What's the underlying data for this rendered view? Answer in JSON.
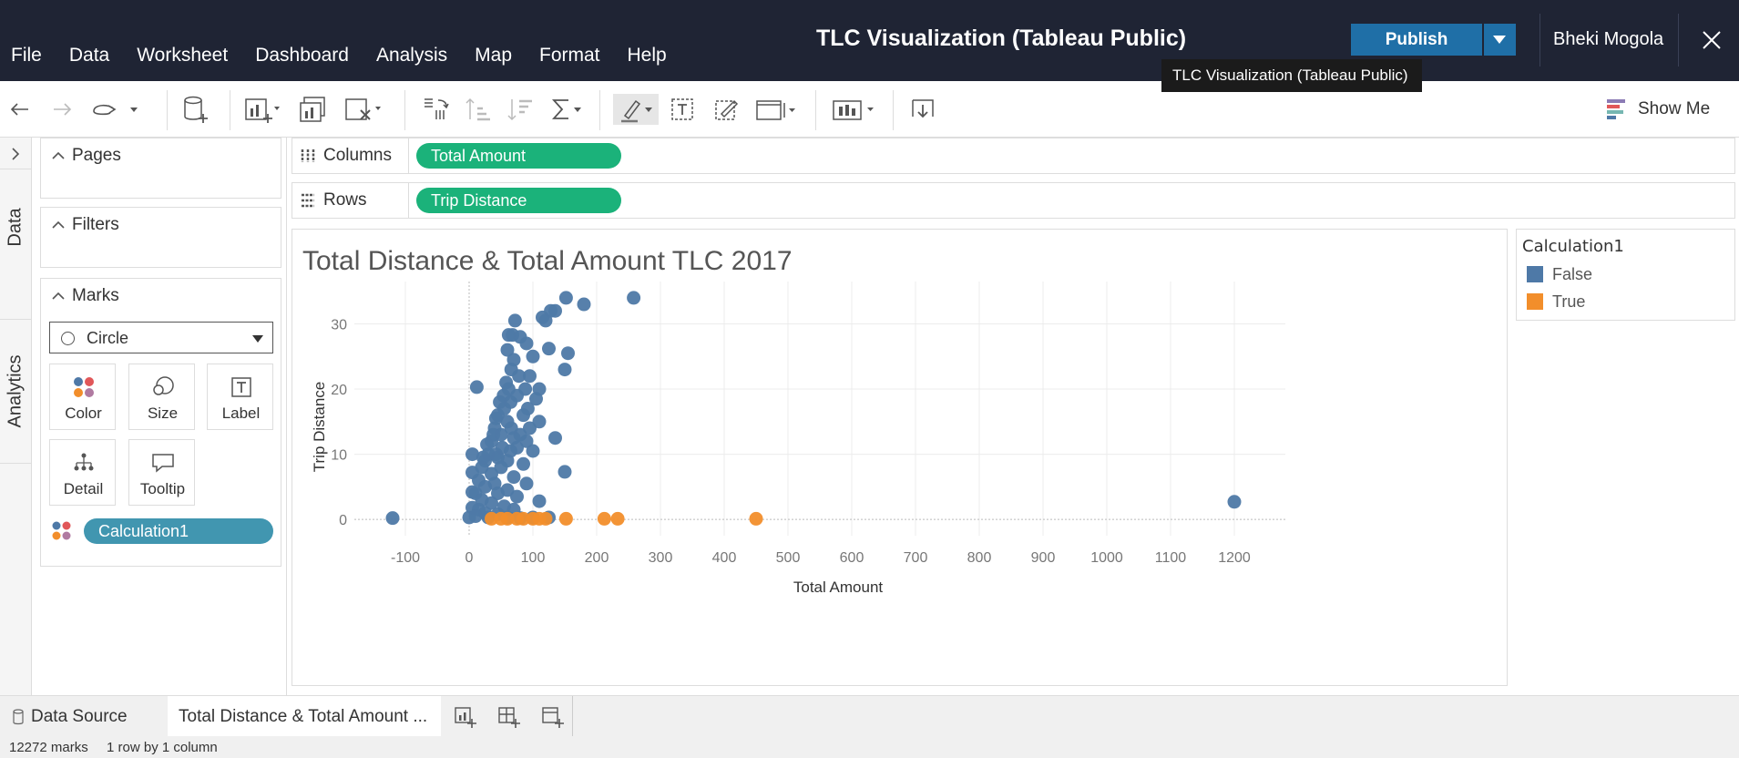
{
  "app": {
    "title": "TLC Visualization (Tableau Public)",
    "user": "Bheki Mogola",
    "publish_label": "Publish",
    "tooltip": "TLC Visualization (Tableau Public)"
  },
  "menu": [
    "File",
    "Data",
    "Worksheet",
    "Dashboard",
    "Analysis",
    "Map",
    "Format",
    "Help"
  ],
  "toolbar": {
    "show_me_label": "Show Me"
  },
  "side_tabs": {
    "data": "Data",
    "analytics": "Analytics"
  },
  "cards": {
    "pages": "Pages",
    "filters": "Filters",
    "marks": "Marks",
    "mark_type": "Circle",
    "mark_buttons": {
      "color": "Color",
      "size": "Size",
      "label": "Label",
      "detail": "Detail",
      "tooltip": "Tooltip"
    },
    "color_field": "Calculation1"
  },
  "shelves": {
    "columns_label": "Columns",
    "columns_pill": "Total Amount",
    "rows_label": "Rows",
    "rows_pill": "Trip Distance"
  },
  "legend": {
    "title": "Calculation1",
    "items": [
      {
        "label": "False",
        "color": "#4e79a7"
      },
      {
        "label": "True",
        "color": "#f28e2b"
      }
    ]
  },
  "chart_data": {
    "type": "scatter",
    "title": "Total Distance & Total Amount TLC 2017",
    "xlabel": "Total Amount",
    "ylabel": "Trip Distance",
    "xlim": [
      -180,
      1280
    ],
    "ylim": [
      -2.5,
      36.5
    ],
    "xticks": [
      "-100",
      "0",
      "100",
      "200",
      "300",
      "400",
      "500",
      "600",
      "700",
      "800",
      "900",
      "1000",
      "1100",
      "1200"
    ],
    "yticks": [
      "0",
      "10",
      "20",
      "30"
    ],
    "grid": true,
    "legend_position": "right",
    "series": [
      {
        "name": "False",
        "color": "#4e79a7",
        "points": [
          [
            -120,
            0.2
          ],
          [
            258,
            34
          ],
          [
            152,
            34
          ],
          [
            180,
            33
          ],
          [
            135,
            32
          ],
          [
            115,
            31
          ],
          [
            120,
            30.5
          ],
          [
            72,
            30.5
          ],
          [
            128,
            32
          ],
          [
            68,
            28.3
          ],
          [
            62,
            28.3
          ],
          [
            80,
            28
          ],
          [
            90,
            27
          ],
          [
            155,
            25.5
          ],
          [
            100,
            25
          ],
          [
            125,
            26.2
          ],
          [
            60,
            26
          ],
          [
            70,
            24.5
          ],
          [
            95,
            22
          ],
          [
            150,
            23
          ],
          [
            12,
            20.3
          ],
          [
            88,
            20
          ],
          [
            110,
            20
          ],
          [
            75,
            19
          ],
          [
            65,
            18
          ],
          [
            105,
            18.5
          ],
          [
            55,
            17
          ],
          [
            45,
            16
          ],
          [
            85,
            16
          ],
          [
            60,
            15
          ],
          [
            40,
            14
          ],
          [
            95,
            14
          ],
          [
            50,
            13
          ],
          [
            70,
            12.5
          ],
          [
            135,
            12.5
          ],
          [
            35,
            12
          ],
          [
            75,
            11
          ],
          [
            30,
            10
          ],
          [
            100,
            10.5
          ],
          [
            45,
            9.5
          ],
          [
            25,
            9
          ],
          [
            60,
            9
          ],
          [
            85,
            8.5
          ],
          [
            20,
            8
          ],
          [
            50,
            8
          ],
          [
            5,
            7.2
          ],
          [
            35,
            7
          ],
          [
            150,
            7.3
          ],
          [
            70,
            6.5
          ],
          [
            15,
            6
          ],
          [
            40,
            5.5
          ],
          [
            90,
            5.5
          ],
          [
            25,
            5
          ],
          [
            60,
            4.5
          ],
          [
            5,
            4.2
          ],
          [
            10,
            4
          ],
          [
            45,
            4
          ],
          [
            75,
            3.5
          ],
          [
            20,
            3
          ],
          [
            35,
            2.5
          ],
          [
            110,
            2.8
          ],
          [
            55,
            2
          ],
          [
            5,
            1.8
          ],
          [
            15,
            1.5
          ],
          [
            70,
            1.5
          ],
          [
            25,
            1
          ],
          [
            45,
            0.8
          ],
          [
            0,
            0.3
          ],
          [
            10,
            0.5
          ],
          [
            30,
            0.3
          ],
          [
            60,
            0.3
          ],
          [
            80,
            0.2
          ],
          [
            100,
            0.3
          ],
          [
            125,
            0.3
          ],
          [
            1200,
            2.7
          ],
          [
            5,
            10
          ],
          [
            58,
            21
          ],
          [
            66,
            23
          ],
          [
            78,
            22
          ],
          [
            54,
            19
          ],
          [
            48,
            18
          ],
          [
            62,
            20
          ],
          [
            92,
            17
          ],
          [
            42,
            15.5
          ],
          [
            38,
            13
          ],
          [
            66,
            14
          ],
          [
            80,
            13
          ],
          [
            28,
            11.5
          ],
          [
            52,
            11
          ],
          [
            90,
            12
          ],
          [
            22,
            9.5
          ],
          [
            42,
            10
          ],
          [
            65,
            10.5
          ],
          [
            110,
            15
          ]
        ]
      },
      {
        "name": "True",
        "color": "#f28e2b",
        "points": [
          [
            35,
            0.1
          ],
          [
            50,
            0.1
          ],
          [
            60,
            0.1
          ],
          [
            75,
            0.1
          ],
          [
            85,
            0.1
          ],
          [
            100,
            0.1
          ],
          [
            110,
            0.1
          ],
          [
            120,
            0.1
          ],
          [
            152,
            0.1
          ],
          [
            212,
            0.1
          ],
          [
            233,
            0.1
          ],
          [
            450,
            0.1
          ]
        ]
      }
    ]
  },
  "bottom": {
    "data_source": "Data Source",
    "sheet_tab": "Total Distance & Total Amount ...",
    "marks_count": "12272 marks",
    "rows_cols": "1 row by 1 column"
  }
}
